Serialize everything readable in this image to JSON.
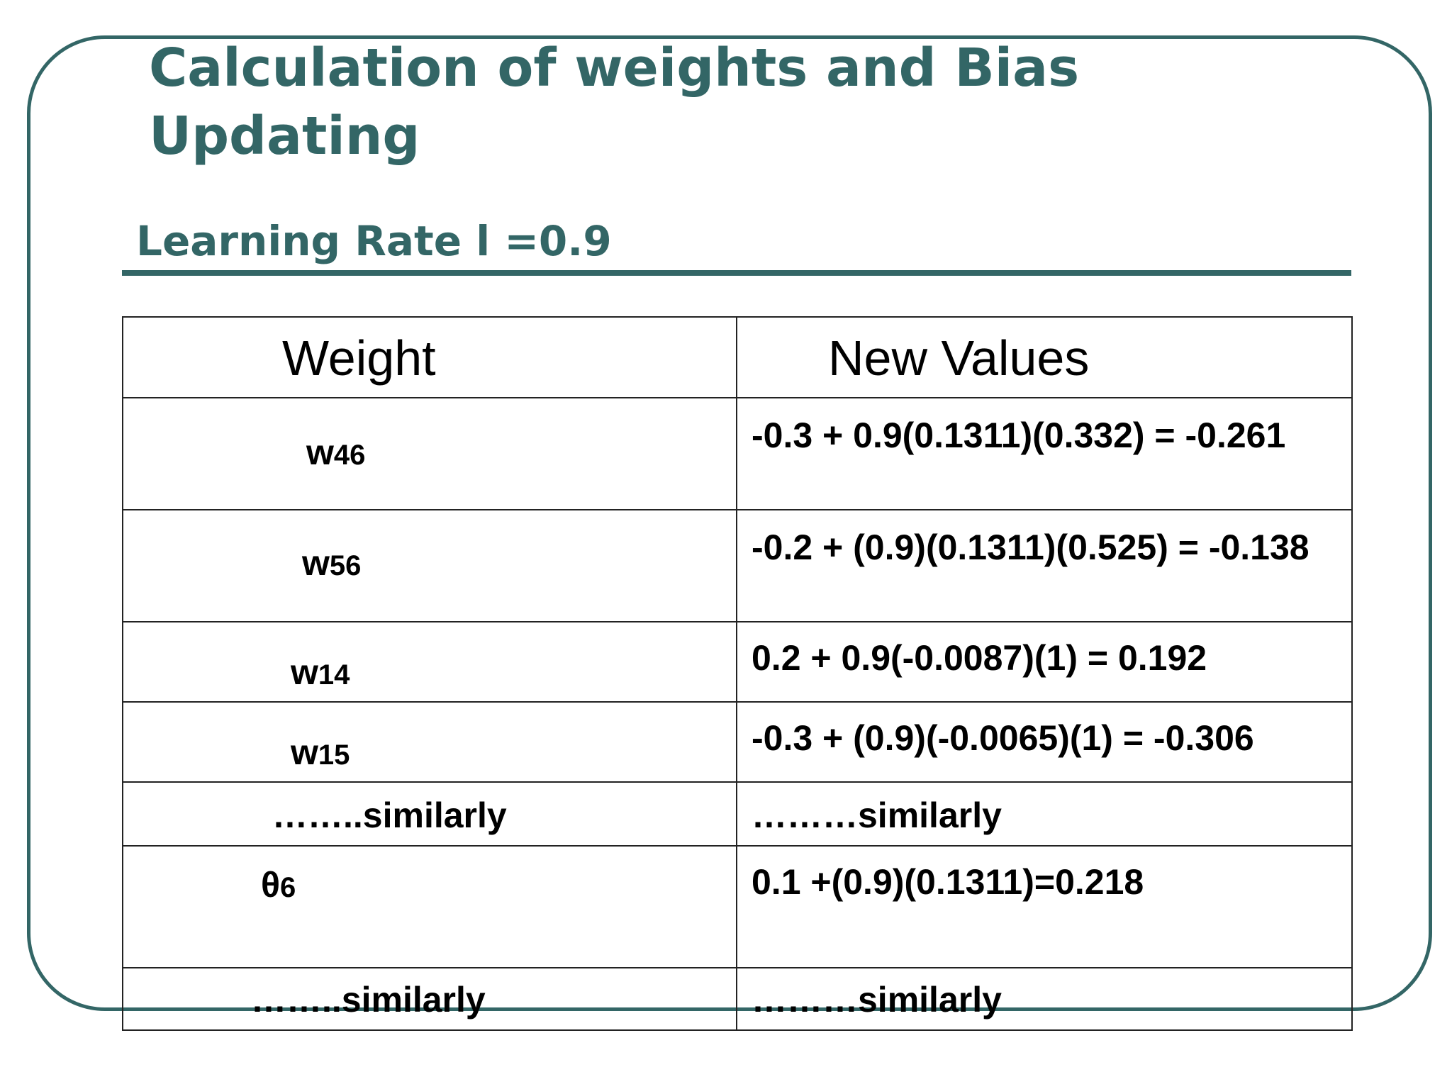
{
  "slide": {
    "title": "Calculation of weights and Bias Updating",
    "learning_rate_label": "Learning Rate l =0.9"
  },
  "table": {
    "headers": [
      "Weight",
      "New Values"
    ],
    "rows": [
      {
        "weight_base": "w",
        "weight_sub": "46",
        "value": "-0.3 + 0.9(0.1311)(0.332) = -0.261"
      },
      {
        "weight_base": "w",
        "weight_sub": "56",
        "value": "-0.2 + (0.9)(0.1311)(0.525) = -0.138"
      },
      {
        "weight_base": "w",
        "weight_sub": "14",
        "value": "0.2 + 0.9(-0.0087)(1) = 0.192"
      },
      {
        "weight_base": "w",
        "weight_sub": "15",
        "value": "-0.3 + (0.9)(-0.0065)(1) = -0.306"
      },
      {
        "weight_base": "……..similarly",
        "weight_sub": "",
        "value": "………similarly"
      },
      {
        "weight_base": "θ",
        "weight_sub": "6",
        "value": "0.1 +(0.9)(0.1311)=0.218"
      },
      {
        "weight_base": "……..similarly",
        "weight_sub": "",
        "value": "………similarly"
      }
    ]
  },
  "colors": {
    "accent": "#336666",
    "text": "#000000",
    "background": "#ffffff"
  }
}
